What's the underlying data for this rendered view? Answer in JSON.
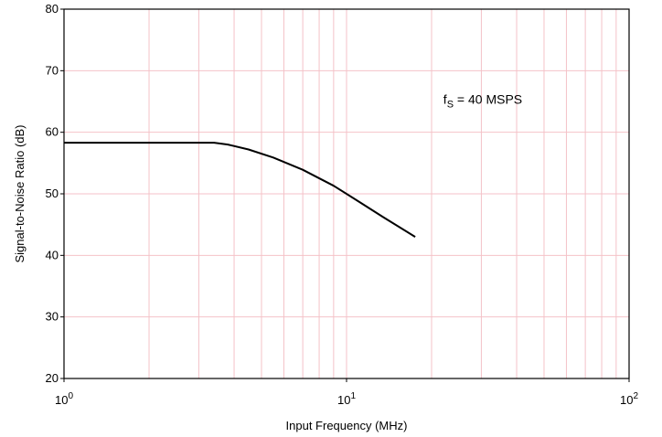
{
  "colors": {
    "grid": "#f4c2c8",
    "axis": "#000000",
    "series": "#000000",
    "background": "#ffffff"
  },
  "chart_data": {
    "type": "line",
    "title": "",
    "xlabel": "Input Frequency (MHz)",
    "ylabel": "Signal-to-Noise Ratio (dB)",
    "xscale": "log",
    "xlim": [
      1,
      100
    ],
    "ylim": [
      20,
      80
    ],
    "x_ticks": [
      {
        "base": "10",
        "exp": "0",
        "value": 1
      },
      {
        "base": "10",
        "exp": "1",
        "value": 10
      },
      {
        "base": "10",
        "exp": "2",
        "value": 100
      }
    ],
    "y_ticks": [
      "20",
      "30",
      "40",
      "50",
      "60",
      "70",
      "80"
    ],
    "grid": true,
    "annotation": {
      "main": "f",
      "sub": "S",
      "rest": " = 40 MSPS",
      "x": 22,
      "y": 64.6
    },
    "series": [
      {
        "x": [
          1,
          2,
          3,
          3.4,
          3.8,
          4.5,
          5.5,
          7,
          9,
          11,
          13.5,
          17.5
        ],
        "values": [
          58.3,
          58.3,
          58.3,
          58.3,
          58.0,
          57.2,
          55.9,
          53.9,
          51.3,
          48.8,
          46.2,
          43.0
        ]
      }
    ]
  }
}
